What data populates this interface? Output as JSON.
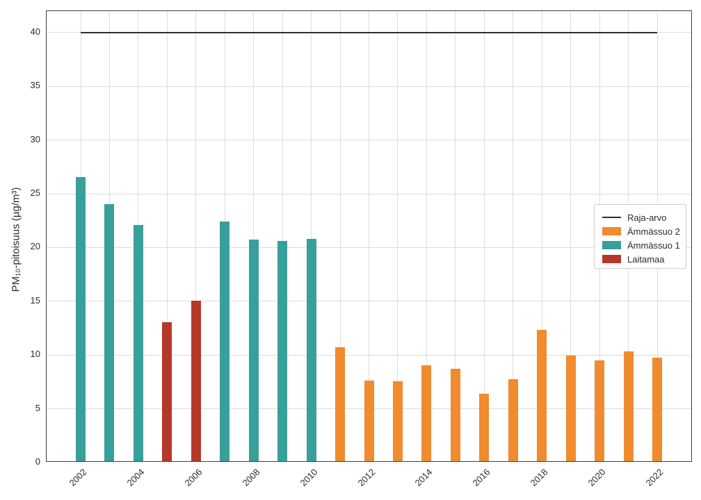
{
  "chart_data": {
    "type": "bar",
    "title": "",
    "xlabel": "",
    "ylabel": "PM₁₀-pitoisuus (µg/m³)",
    "ylim": [
      0,
      42
    ],
    "yticks": [
      0,
      5,
      10,
      15,
      20,
      25,
      30,
      35,
      40
    ],
    "grid": true,
    "categories": [
      "2002",
      "2003",
      "2004",
      "2005",
      "2006",
      "2007",
      "2008",
      "2009",
      "2010",
      "2011",
      "2012",
      "2013",
      "2014",
      "2015",
      "2016",
      "2017",
      "2018",
      "2019",
      "2020",
      "2021",
      "2022"
    ],
    "xtick_labels": [
      "2002",
      "2004",
      "2006",
      "2008",
      "2010",
      "2012",
      "2014",
      "2016",
      "2018",
      "2020",
      "2022"
    ],
    "series": [
      {
        "name": "Ämmässuo 2",
        "color": "#f08b2e",
        "values": [
          null,
          null,
          null,
          null,
          null,
          null,
          null,
          null,
          null,
          10.6,
          7.5,
          7.4,
          8.9,
          8.6,
          6.3,
          7.6,
          12.2,
          9.8,
          9.4,
          10.2,
          9.6
        ]
      },
      {
        "name": "Ämmässuo 1",
        "color": "#389f9b",
        "values": [
          26.4,
          23.9,
          22.0,
          null,
          null,
          22.3,
          20.6,
          20.5,
          20.7,
          null,
          null,
          null,
          null,
          null,
          null,
          null,
          null,
          null,
          null,
          null,
          null
        ]
      },
      {
        "name": "Laitamaa",
        "color": "#b5372a",
        "values": [
          null,
          null,
          null,
          12.9,
          14.9,
          null,
          null,
          null,
          null,
          null,
          null,
          null,
          null,
          null,
          null,
          null,
          null,
          null,
          null,
          null,
          null
        ]
      }
    ],
    "reference_line": {
      "name": "Raja-arvo",
      "value": 40,
      "color": "#2e2e2e"
    },
    "legend": {
      "position": "center-right",
      "entries": [
        {
          "label": "Raja-arvo",
          "swatch": "line",
          "color": "#2e2e2e"
        },
        {
          "label": "Ämmässuo 2",
          "swatch": "rect",
          "color": "#f08b2e"
        },
        {
          "label": "Ämmässuo 1",
          "swatch": "rect",
          "color": "#389f9b"
        },
        {
          "label": "Laitamaa",
          "swatch": "rect",
          "color": "#b5372a"
        }
      ]
    }
  }
}
